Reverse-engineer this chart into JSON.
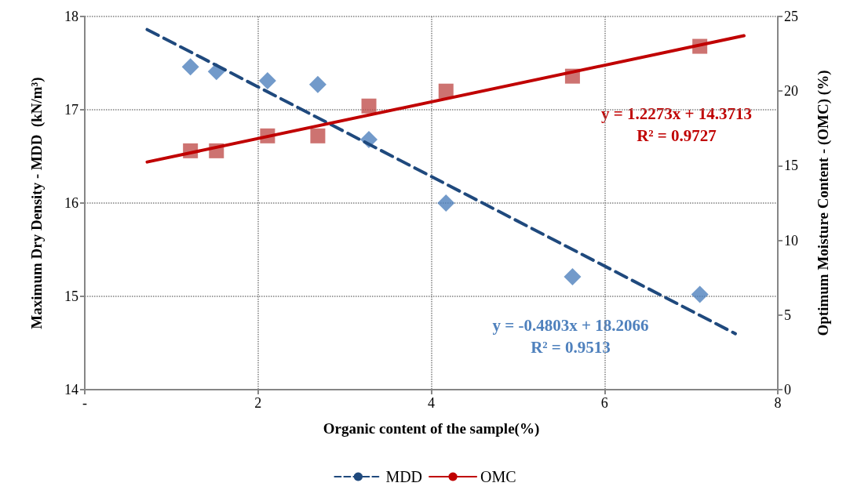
{
  "chart_data": {
    "type": "scatter",
    "xlabel": "Organic content of the sample(%)",
    "ylabel": "Maximum Dry Density - MDD  (kN/m³)",
    "y2label": "Optimum Moisture Content - (OMC) (%)",
    "xlim": [
      0,
      8
    ],
    "xticks": [
      {
        "value": 0,
        "label": "-"
      },
      2,
      4,
      6,
      8
    ],
    "ylim": [
      14,
      18
    ],
    "yticks": [
      14,
      15,
      16,
      17,
      18
    ],
    "y2lim": [
      0,
      25
    ],
    "y2ticks": [
      0,
      5,
      10,
      15,
      20,
      25
    ],
    "grid": true,
    "legend": "bottom",
    "annotations": [
      "y = 1.2273x + 14.3713",
      "R² = 0.9727",
      "y = -0.4803x + 18.2066",
      "R² = 0.9513"
    ],
    "series": [
      {
        "marker": "diamond",
        "color": "#4f81bd",
        "x": [
          1.22,
          1.52,
          2.11,
          2.69,
          3.28,
          4.17,
          5.63,
          7.1
        ],
        "values": [
          17.46,
          17.41,
          17.31,
          17.27,
          16.68,
          16.0,
          15.21,
          15.02
        ]
      },
      {
        "marker": "square",
        "color": "#c0504d",
        "axis": "y2",
        "x": [
          1.22,
          1.52,
          2.11,
          2.69,
          3.28,
          4.17,
          5.63,
          7.1
        ],
        "values": [
          16,
          16,
          17,
          17,
          19,
          20,
          21,
          23
        ]
      },
      {
        "type": "line",
        "name": "MDD",
        "color": "#1f497d",
        "line_style": "dashed",
        "marker": "none",
        "x": [
          0.72,
          7.51
        ],
        "values": [
          17.86,
          14.6
        ]
      },
      {
        "type": "line",
        "name": "OMC",
        "color": "#c00000",
        "line_style": "solid",
        "marker": "none",
        "axis": "y2",
        "x": [
          0.72,
          7.61
        ],
        "values": [
          15.25,
          23.71
        ]
      }
    ]
  }
}
